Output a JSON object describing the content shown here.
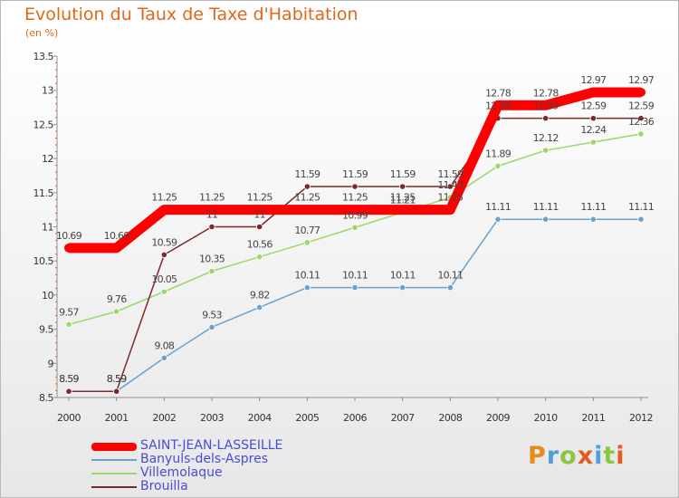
{
  "header": {
    "title": "Evolution du Taux de Taxe d'Habitation",
    "unit": "(en %)"
  },
  "logo": {
    "text": "Proxiti"
  },
  "chart_data": {
    "type": "line",
    "title": "Evolution du Taux de Taxe d'Habitation",
    "subtitle": "(en %)",
    "x": [
      "2000",
      "2001",
      "2002",
      "2003",
      "2004",
      "2005",
      "2006",
      "2007",
      "2008",
      "2009",
      "2010",
      "2011",
      "2012"
    ],
    "ylim": [
      8.5,
      13.5
    ],
    "yticks": [
      "8.5",
      "9",
      "9.5",
      "10",
      "10.5",
      "11",
      "11.5",
      "12",
      "12.5",
      "13",
      "13.5"
    ],
    "grid": false,
    "legend_position": "bottom-left",
    "series": [
      {
        "name": "SAINT-JEAN-LASSEILLE",
        "color": "#ff0000",
        "values": [
          10.69,
          10.69,
          11.25,
          11.25,
          11.25,
          11.25,
          11.25,
          11.25,
          11.25,
          12.78,
          12.78,
          12.97,
          12.97
        ],
        "labels": [
          "10.69",
          "10.69",
          "11.25",
          "11.25",
          "11.25",
          "11.25",
          "11.25",
          "11.25",
          "11.25",
          "12.78",
          "12.78",
          "12.97",
          "12.97"
        ]
      },
      {
        "name": "Banyuls-dels-Aspres",
        "color": "#6aa2cc",
        "values": [
          8.59,
          8.59,
          9.08,
          9.53,
          9.82,
          10.11,
          10.11,
          10.11,
          10.11,
          11.11,
          11.11,
          11.11,
          11.11
        ],
        "labels": [
          "8.59",
          "8.59",
          "9.08",
          "9.53",
          "9.82",
          "10.11",
          "10.11",
          "10.11",
          "10.11",
          "11.11",
          "11.11",
          "11.11",
          "11.11"
        ]
      },
      {
        "name": "Villemolaque",
        "color": "#99d86c",
        "values": [
          9.57,
          9.76,
          10.05,
          10.35,
          10.56,
          10.77,
          10.99,
          11.21,
          11.43,
          11.89,
          12.12,
          12.24,
          12.36
        ],
        "labels": [
          "9.57",
          "9.76",
          "10.05",
          "10.35",
          "10.56",
          "10.77",
          "10.99",
          "11.21",
          "11.43",
          "11.89",
          "12.12",
          "12.24",
          "12.36"
        ]
      },
      {
        "name": "Brouilla",
        "color": "#7b2a2a",
        "values": [
          8.59,
          8.59,
          10.59,
          11,
          11,
          11.59,
          11.59,
          11.59,
          11.59,
          12.59,
          12.59,
          12.59,
          12.59
        ],
        "labels": [
          "8.59",
          "8.59",
          "10.59",
          "11",
          "11",
          "11.59",
          "11.59",
          "11.59",
          "11.59",
          "12.59",
          "12.59",
          "12.59",
          "12.59"
        ]
      }
    ]
  }
}
